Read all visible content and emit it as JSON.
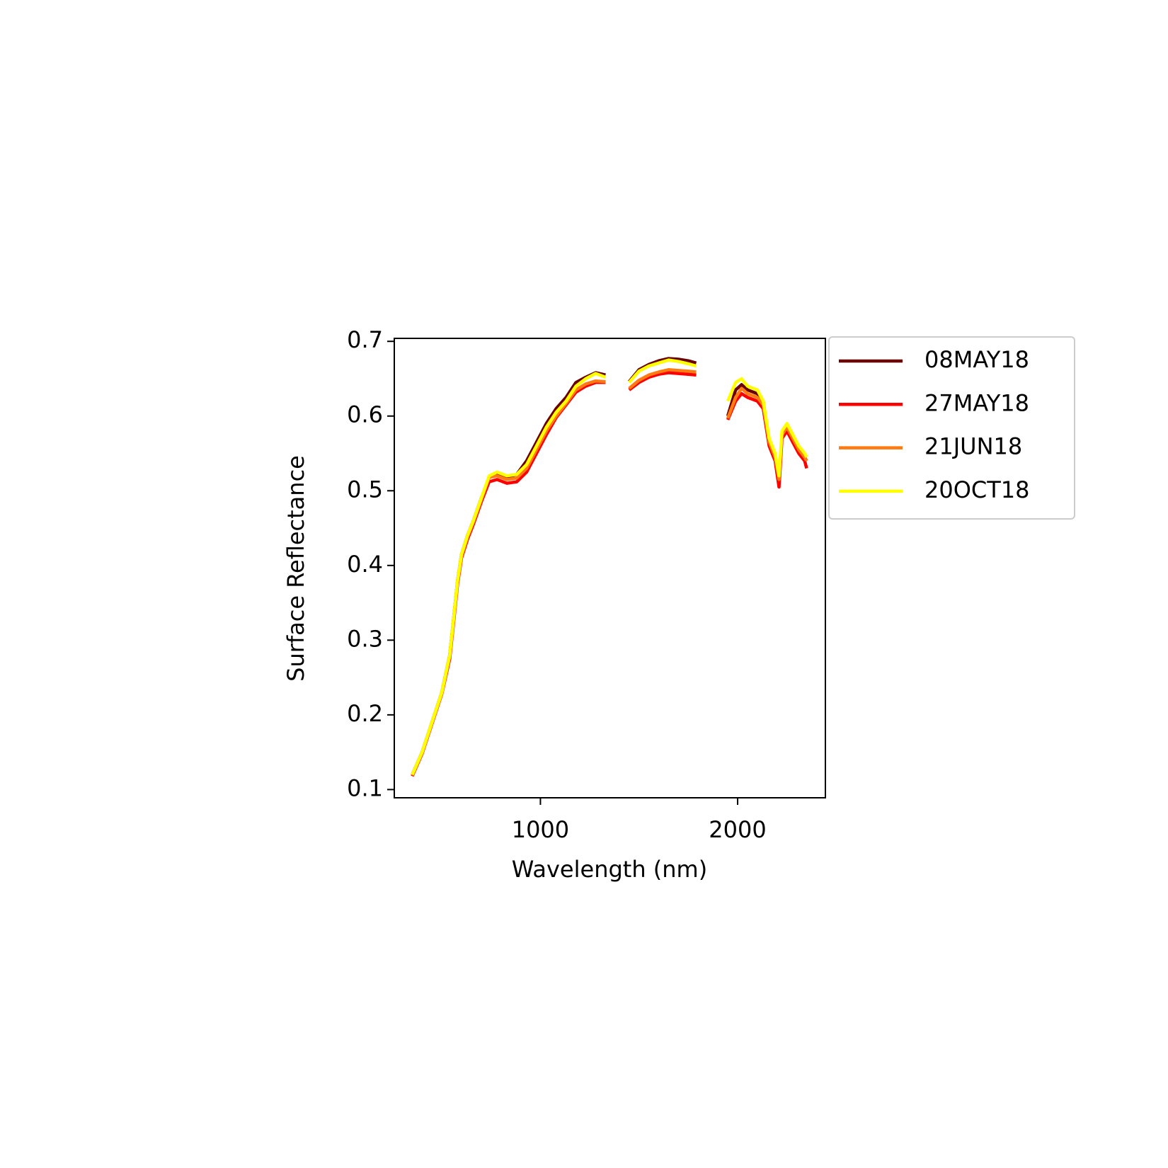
{
  "chart_data": {
    "type": "line",
    "x_label": "Wavelength (nm)",
    "y_label": "Surface Reflectance",
    "x": [
      350,
      400,
      450,
      500,
      540,
      560,
      580,
      600,
      630,
      660,
      700,
      740,
      780,
      830,
      880,
      930,
      980,
      1030,
      1080,
      1130,
      1180,
      1230,
      1280,
      1330,
      1390,
      1450,
      1500,
      1550,
      1600,
      1650,
      1700,
      1750,
      1790,
      1870,
      1950,
      1990,
      2020,
      2050,
      2100,
      2130,
      2160,
      2190,
      2210,
      2225,
      2250,
      2280,
      2310,
      2340,
      2350
    ],
    "series": [
      {
        "name": "08MAY18",
        "color": "#6b0000",
        "values": [
          0.12,
          0.15,
          0.19,
          0.23,
          0.28,
          0.33,
          0.38,
          0.415,
          0.44,
          0.46,
          0.49,
          0.518,
          0.522,
          0.518,
          0.522,
          0.54,
          0.565,
          0.59,
          0.61,
          0.625,
          0.645,
          0.652,
          0.658,
          0.655,
          null,
          0.646,
          0.662,
          0.669,
          0.674,
          0.677,
          0.676,
          0.674,
          0.671,
          null,
          0.6,
          0.635,
          0.642,
          0.635,
          0.63,
          0.62,
          0.565,
          0.545,
          0.51,
          0.575,
          0.585,
          0.57,
          0.555,
          0.545,
          0.54
        ]
      },
      {
        "name": "27MAY18",
        "color": "#ff0000",
        "values": [
          0.118,
          0.148,
          0.188,
          0.228,
          0.275,
          0.325,
          0.375,
          0.41,
          0.435,
          0.455,
          0.485,
          0.512,
          0.515,
          0.51,
          0.512,
          0.525,
          0.55,
          0.575,
          0.598,
          0.615,
          0.632,
          0.64,
          0.645,
          0.645,
          null,
          0.635,
          0.645,
          0.652,
          0.656,
          0.658,
          0.657,
          0.656,
          0.655,
          null,
          0.595,
          0.62,
          0.63,
          0.625,
          0.62,
          0.61,
          0.56,
          0.54,
          0.505,
          0.57,
          0.58,
          0.565,
          0.55,
          0.54,
          0.53
        ]
      },
      {
        "name": "21JUN18",
        "color": "#ff7a10",
        "values": [
          0.119,
          0.149,
          0.189,
          0.229,
          0.278,
          0.328,
          0.378,
          0.412,
          0.438,
          0.458,
          0.488,
          0.518,
          0.52,
          0.515,
          0.517,
          0.53,
          0.555,
          0.58,
          0.6,
          0.617,
          0.635,
          0.643,
          0.647,
          0.646,
          null,
          0.637,
          0.648,
          0.655,
          0.659,
          0.662,
          0.661,
          0.66,
          0.659,
          null,
          0.597,
          0.625,
          0.637,
          0.63,
          0.625,
          0.615,
          0.565,
          0.545,
          0.515,
          0.575,
          0.585,
          0.57,
          0.555,
          0.545,
          0.54
        ]
      },
      {
        "name": "20OCT18",
        "color": "#ffff00",
        "values": [
          0.12,
          0.15,
          0.19,
          0.23,
          0.28,
          0.33,
          0.38,
          0.415,
          0.44,
          0.46,
          0.49,
          0.52,
          0.525,
          0.52,
          0.522,
          0.535,
          0.56,
          0.585,
          0.605,
          0.62,
          0.64,
          0.65,
          0.657,
          0.652,
          null,
          0.645,
          0.66,
          0.667,
          0.671,
          0.675,
          0.673,
          0.67,
          0.667,
          null,
          0.62,
          0.645,
          0.65,
          0.64,
          0.635,
          0.62,
          0.57,
          0.55,
          0.52,
          0.58,
          0.59,
          0.575,
          0.56,
          0.55,
          0.545
        ]
      }
    ],
    "xlim": [
      259,
      2445
    ],
    "ylim": [
      0.089,
      0.704
    ],
    "xticks": [
      1000,
      2000
    ],
    "yticks": [
      0.1,
      0.2,
      0.3,
      0.4,
      0.5,
      0.6,
      0.7
    ],
    "grid": false
  }
}
